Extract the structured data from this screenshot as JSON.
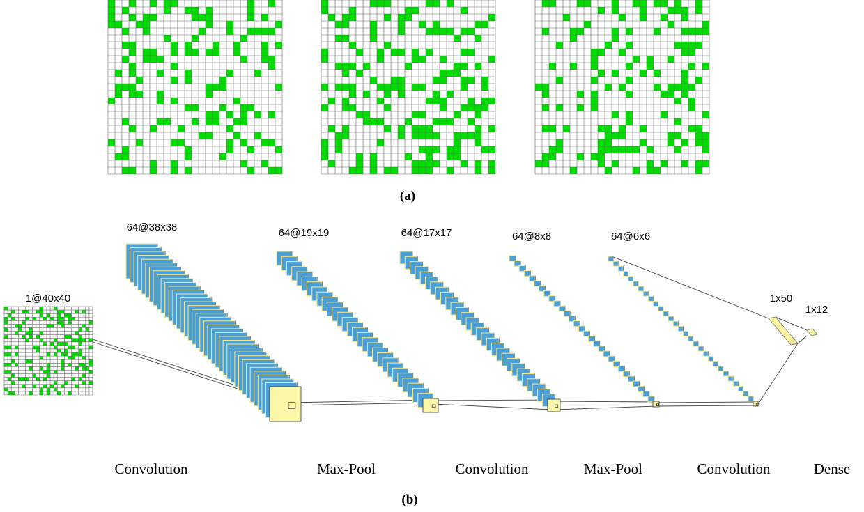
{
  "colors": {
    "cell_on": "#00dd00",
    "cell_off": "#ffffff",
    "grid_line": "#6a6a6a",
    "map_face": "#4a9fd6",
    "map_edge": "#f4e48c",
    "front_face": "#fbf7a8",
    "dense": "#faf3a0"
  },
  "panel_a": {
    "label": "(a)",
    "grids": [
      {
        "rows": 25,
        "cols": 25,
        "seed": 11,
        "density": 0.27
      },
      {
        "rows": 25,
        "cols": 25,
        "seed": 29,
        "density": 0.29
      },
      {
        "rows": 25,
        "cols": 25,
        "seed": 53,
        "density": 0.22
      }
    ]
  },
  "panel_b": {
    "label": "(b)",
    "input": {
      "label": "1@40x40",
      "rows": 25,
      "cols": 25,
      "seed": 71,
      "density": 0.27
    },
    "layers": [
      {
        "label": "64@38x38",
        "stack": 38
      },
      {
        "label": "64@19x19",
        "stack": 30
      },
      {
        "label": "64@17x17",
        "stack": 30
      },
      {
        "label": "64@8x8",
        "stack": 30
      },
      {
        "label": "64@6x6",
        "stack": 30
      }
    ],
    "dense_layers": [
      {
        "label": "1x50"
      },
      {
        "label": "1x12"
      }
    ],
    "operations": [
      "Convolution",
      "Max-Pool",
      "Convolution",
      "Max-Pool",
      "Convolution",
      "Dense"
    ]
  }
}
